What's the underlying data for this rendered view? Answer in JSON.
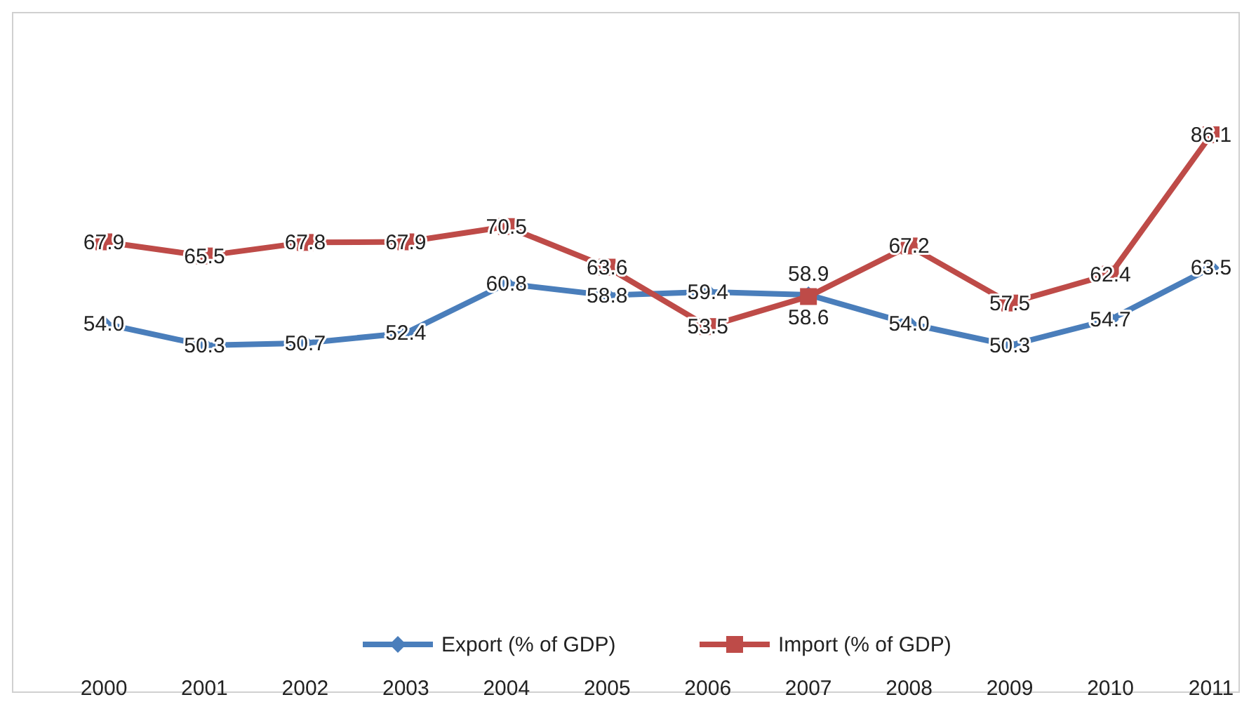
{
  "chart_data": {
    "type": "line",
    "categories": [
      "2000",
      "2001",
      "2002",
      "2003",
      "2004",
      "2005",
      "2006",
      "2007",
      "2008",
      "2009",
      "2010",
      "2011"
    ],
    "series": [
      {
        "name": "Export (% of GDP)",
        "color": "#4a7ebb",
        "marker": "diamond",
        "values": [
          54.0,
          50.3,
          50.7,
          52.4,
          60.8,
          58.8,
          59.4,
          58.9,
          54.0,
          50.3,
          54.7,
          63.5
        ],
        "value_labels": [
          "54.0",
          "50.3",
          "50.7",
          "52.4",
          "60.8",
          "58.8",
          "59.4",
          "58.9",
          "54.0",
          "50.3",
          "54.7",
          "63.5"
        ]
      },
      {
        "name": "Import (% of GDP)",
        "color": "#be4b48",
        "marker": "square",
        "values": [
          67.9,
          65.5,
          67.8,
          67.9,
          70.5,
          63.6,
          53.5,
          58.6,
          67.2,
          57.5,
          62.4,
          86.1
        ],
        "value_labels": [
          "67.9",
          "65.5",
          "67.8",
          "67.9",
          "70.5",
          "63.6",
          "53.5",
          "58.6",
          "67.2",
          "57.5",
          "62.4",
          "86.1"
        ]
      }
    ],
    "tick_labels": "x",
    "legend": "bottom",
    "grid": false
  }
}
